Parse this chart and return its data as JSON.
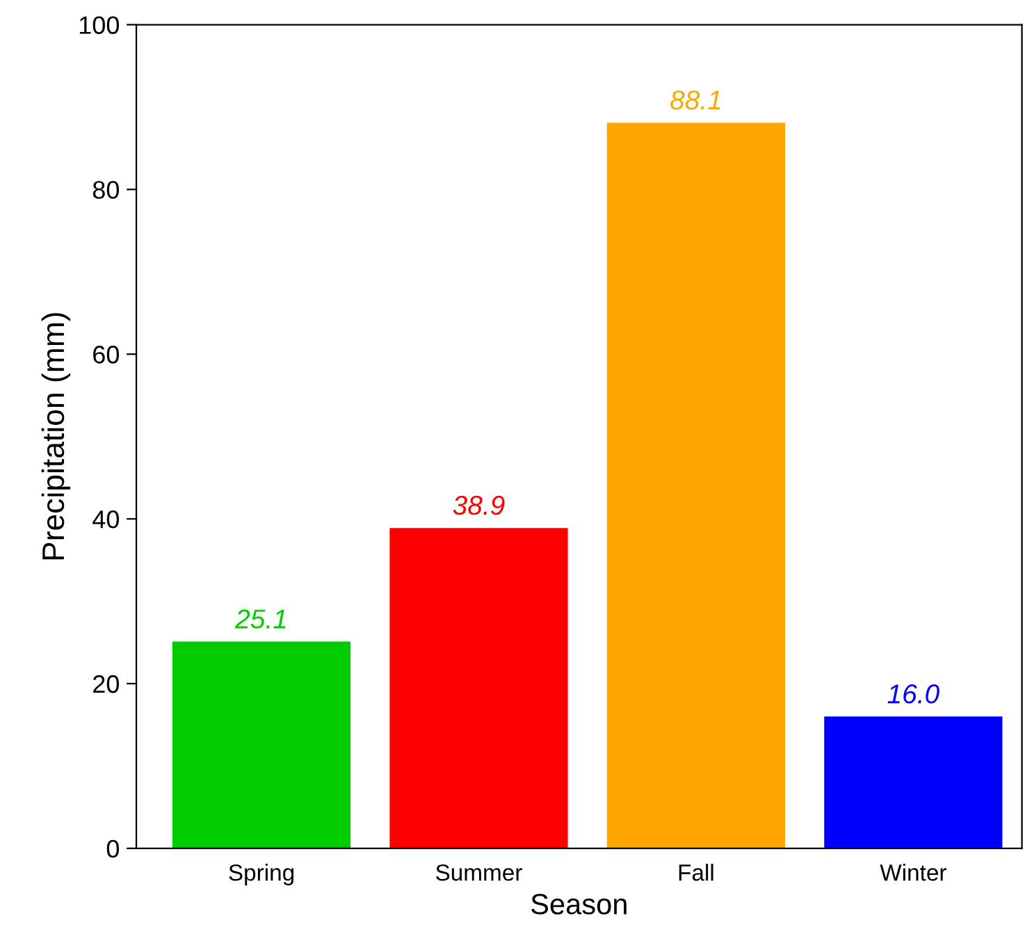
{
  "chart_data": {
    "type": "bar",
    "xlabel": "Season",
    "ylabel": "Precipitation (mm)",
    "categories": [
      "Spring",
      "Summer",
      "Fall",
      "Winter"
    ],
    "values": [
      25.1,
      38.9,
      88.1,
      16.0
    ],
    "colors": [
      "#00cc00",
      "#ff0000",
      "#ffa500",
      "#0000ff"
    ],
    "value_labels": [
      "25.1",
      "38.9",
      "88.1",
      "16.0"
    ],
    "ylim": [
      0,
      100
    ],
    "yticks": [
      0,
      20,
      40,
      60,
      80,
      100
    ],
    "grid": false,
    "legend": false
  }
}
